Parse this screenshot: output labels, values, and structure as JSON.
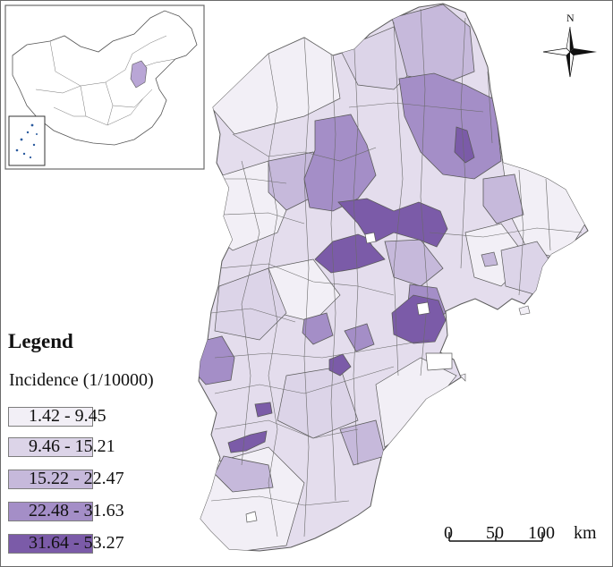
{
  "legend": {
    "title": "Legend",
    "subtitle": "Incidence (1/10000)",
    "classes": [
      {
        "label": "1.42 - 9.45",
        "color": "#f2eff6"
      },
      {
        "label": "9.46 - 15.21",
        "color": "#dcd4e8"
      },
      {
        "label": "15.22 - 22.47",
        "color": "#c6b9db"
      },
      {
        "label": "22.48 - 31.63",
        "color": "#a48ec7"
      },
      {
        "label": "31.64 - 53.27",
        "color": "#7b5ba8"
      }
    ]
  },
  "north_arrow": {
    "label": "N"
  },
  "scale_bar": {
    "ticks": [
      "0",
      "50",
      "100"
    ],
    "unit": "km"
  },
  "colors": {
    "border": "#6b6b6b",
    "outline": "#5a5a5a"
  }
}
